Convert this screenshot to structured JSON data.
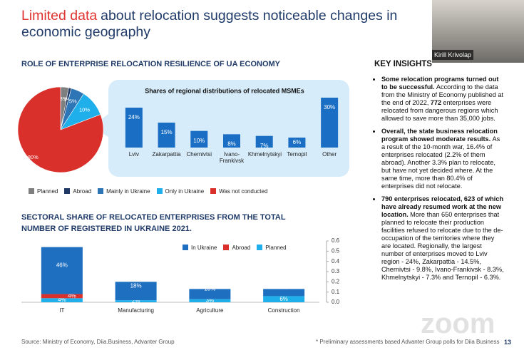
{
  "slide": {
    "title_highlight": "Limited data",
    "title_rest": "about relocation suggests noticeable changes in economic geography",
    "speaker": "Kirill Krivolap",
    "section1": "ROLE OF ENTERPRISE RELOCATION RESILIENCE OF UA ECONOMY",
    "section2": "SECTORAL SHARE OF RELOCATED ENTERPRISES FROM THE TOTAL NUMBER OF REGISTERED IN UKRAINE 2021.",
    "source": "Source: Ministry of Economy, Diia.Business, Advanter Group",
    "footnote": "* Preliminary assessments based Advanter Group polls for Diia Business",
    "page": "13",
    "watermark": "zoom"
  },
  "insights": {
    "title": "KEY INSIGHTS",
    "bullets": [
      [
        {
          "text": "Some relocation programs turned out to be successful.",
          "bold": true
        },
        {
          "text": "According to the data from the Ministry of Economy published at the end of 2022,",
          "bold": false
        },
        {
          "text": "772",
          "bold": true
        },
        {
          "text": "enterprises were relocated from dangerous regions which allowed to save more than 35,000 jobs.",
          "bold": false
        }
      ],
      [
        {
          "text": "Overall, the state business relocation program showed moderate results.",
          "bold": true
        },
        {
          "text": "As a result of the 10-month war, 16.4% of enterprises relocated (2.2% of them abroad). Another 3.3% plan to relocate, but have not yet decided where. At the same time, more than 80.4% of enterprises did not relocate.",
          "bold": false
        }
      ],
      [
        {
          "text": "790 enterprises relocated, 623 of which have already resumed work at the new location.",
          "bold": true
        },
        {
          "text": "More than 650 enterprises that planned to relocate their production facilities refused to relocate due to the de-occupation of the territories where they are located. Regionally, the largest number of enterprises moved to Lviv region - 24%, Zakarpattia - 14.5%, Chernivtsi - 9.8%, Ivano-Frankivsk - 8.3%, Khmelnytskyi - 7.3% and Ternopil - 6.3%.",
          "bold": false
        }
      ]
    ]
  },
  "chart_data": [
    {
      "type": "pie",
      "categories": [
        "Planned",
        "Abroad",
        "Mainly in Ukraine",
        "Only in Ukraine",
        "Was not conducted"
      ],
      "values": [
        3,
        1,
        5,
        10,
        80
      ],
      "value_labels": [
        "3%",
        "1%",
        "5%",
        "10%",
        "80%"
      ],
      "colors": [
        "#7f7f7f",
        "#1f3864",
        "#2e75b6",
        "#1fb0ec",
        "#d9302c"
      ]
    },
    {
      "type": "bar",
      "title": "Shares of regional distributions of relocated  MSMEs",
      "categories": [
        "Lviv",
        "Zakarpattia",
        "Chernivtsi",
        "Ivano-Frankivsk",
        "Khmelnytskyi",
        "Ternopil",
        "Other"
      ],
      "values": [
        24,
        15,
        10,
        8,
        7,
        6,
        30
      ],
      "value_labels": [
        "24%",
        "15%",
        "10%",
        "8%",
        "7%",
        "6%",
        "30%"
      ],
      "color": "#1a6fc4"
    },
    {
      "type": "bar",
      "stacked": true,
      "categories": [
        "IT",
        "Manufacturing",
        "Agriculture",
        "Construction"
      ],
      "series": [
        {
          "name": "In Ukraine",
          "color": "#1f6fc1",
          "axis": "y2",
          "values": [
            0.46,
            0.18,
            0.1,
            0.07
          ],
          "value_labels": [
            "46%",
            "18%",
            "10%",
            "7%"
          ]
        },
        {
          "name": "Abroad",
          "color": "#d9302c",
          "axis": "y2",
          "values": [
            0.04,
            0,
            0,
            0
          ],
          "value_labels": [
            "4%",
            null,
            null,
            null
          ]
        },
        {
          "name": "Planned",
          "color": "#1fb0ec",
          "axis": "y2",
          "values": [
            0.04,
            0.02,
            0.03,
            0.06
          ],
          "value_labels": [
            "4%",
            "2%",
            "3%",
            "6%"
          ]
        }
      ],
      "y2lim": [
        0,
        0.6
      ],
      "y2ticks": [
        {
          "value": 0,
          "label": "0.0"
        },
        0.1,
        0.2,
        0.3,
        0.4,
        0.5,
        0.6
      ]
    }
  ]
}
